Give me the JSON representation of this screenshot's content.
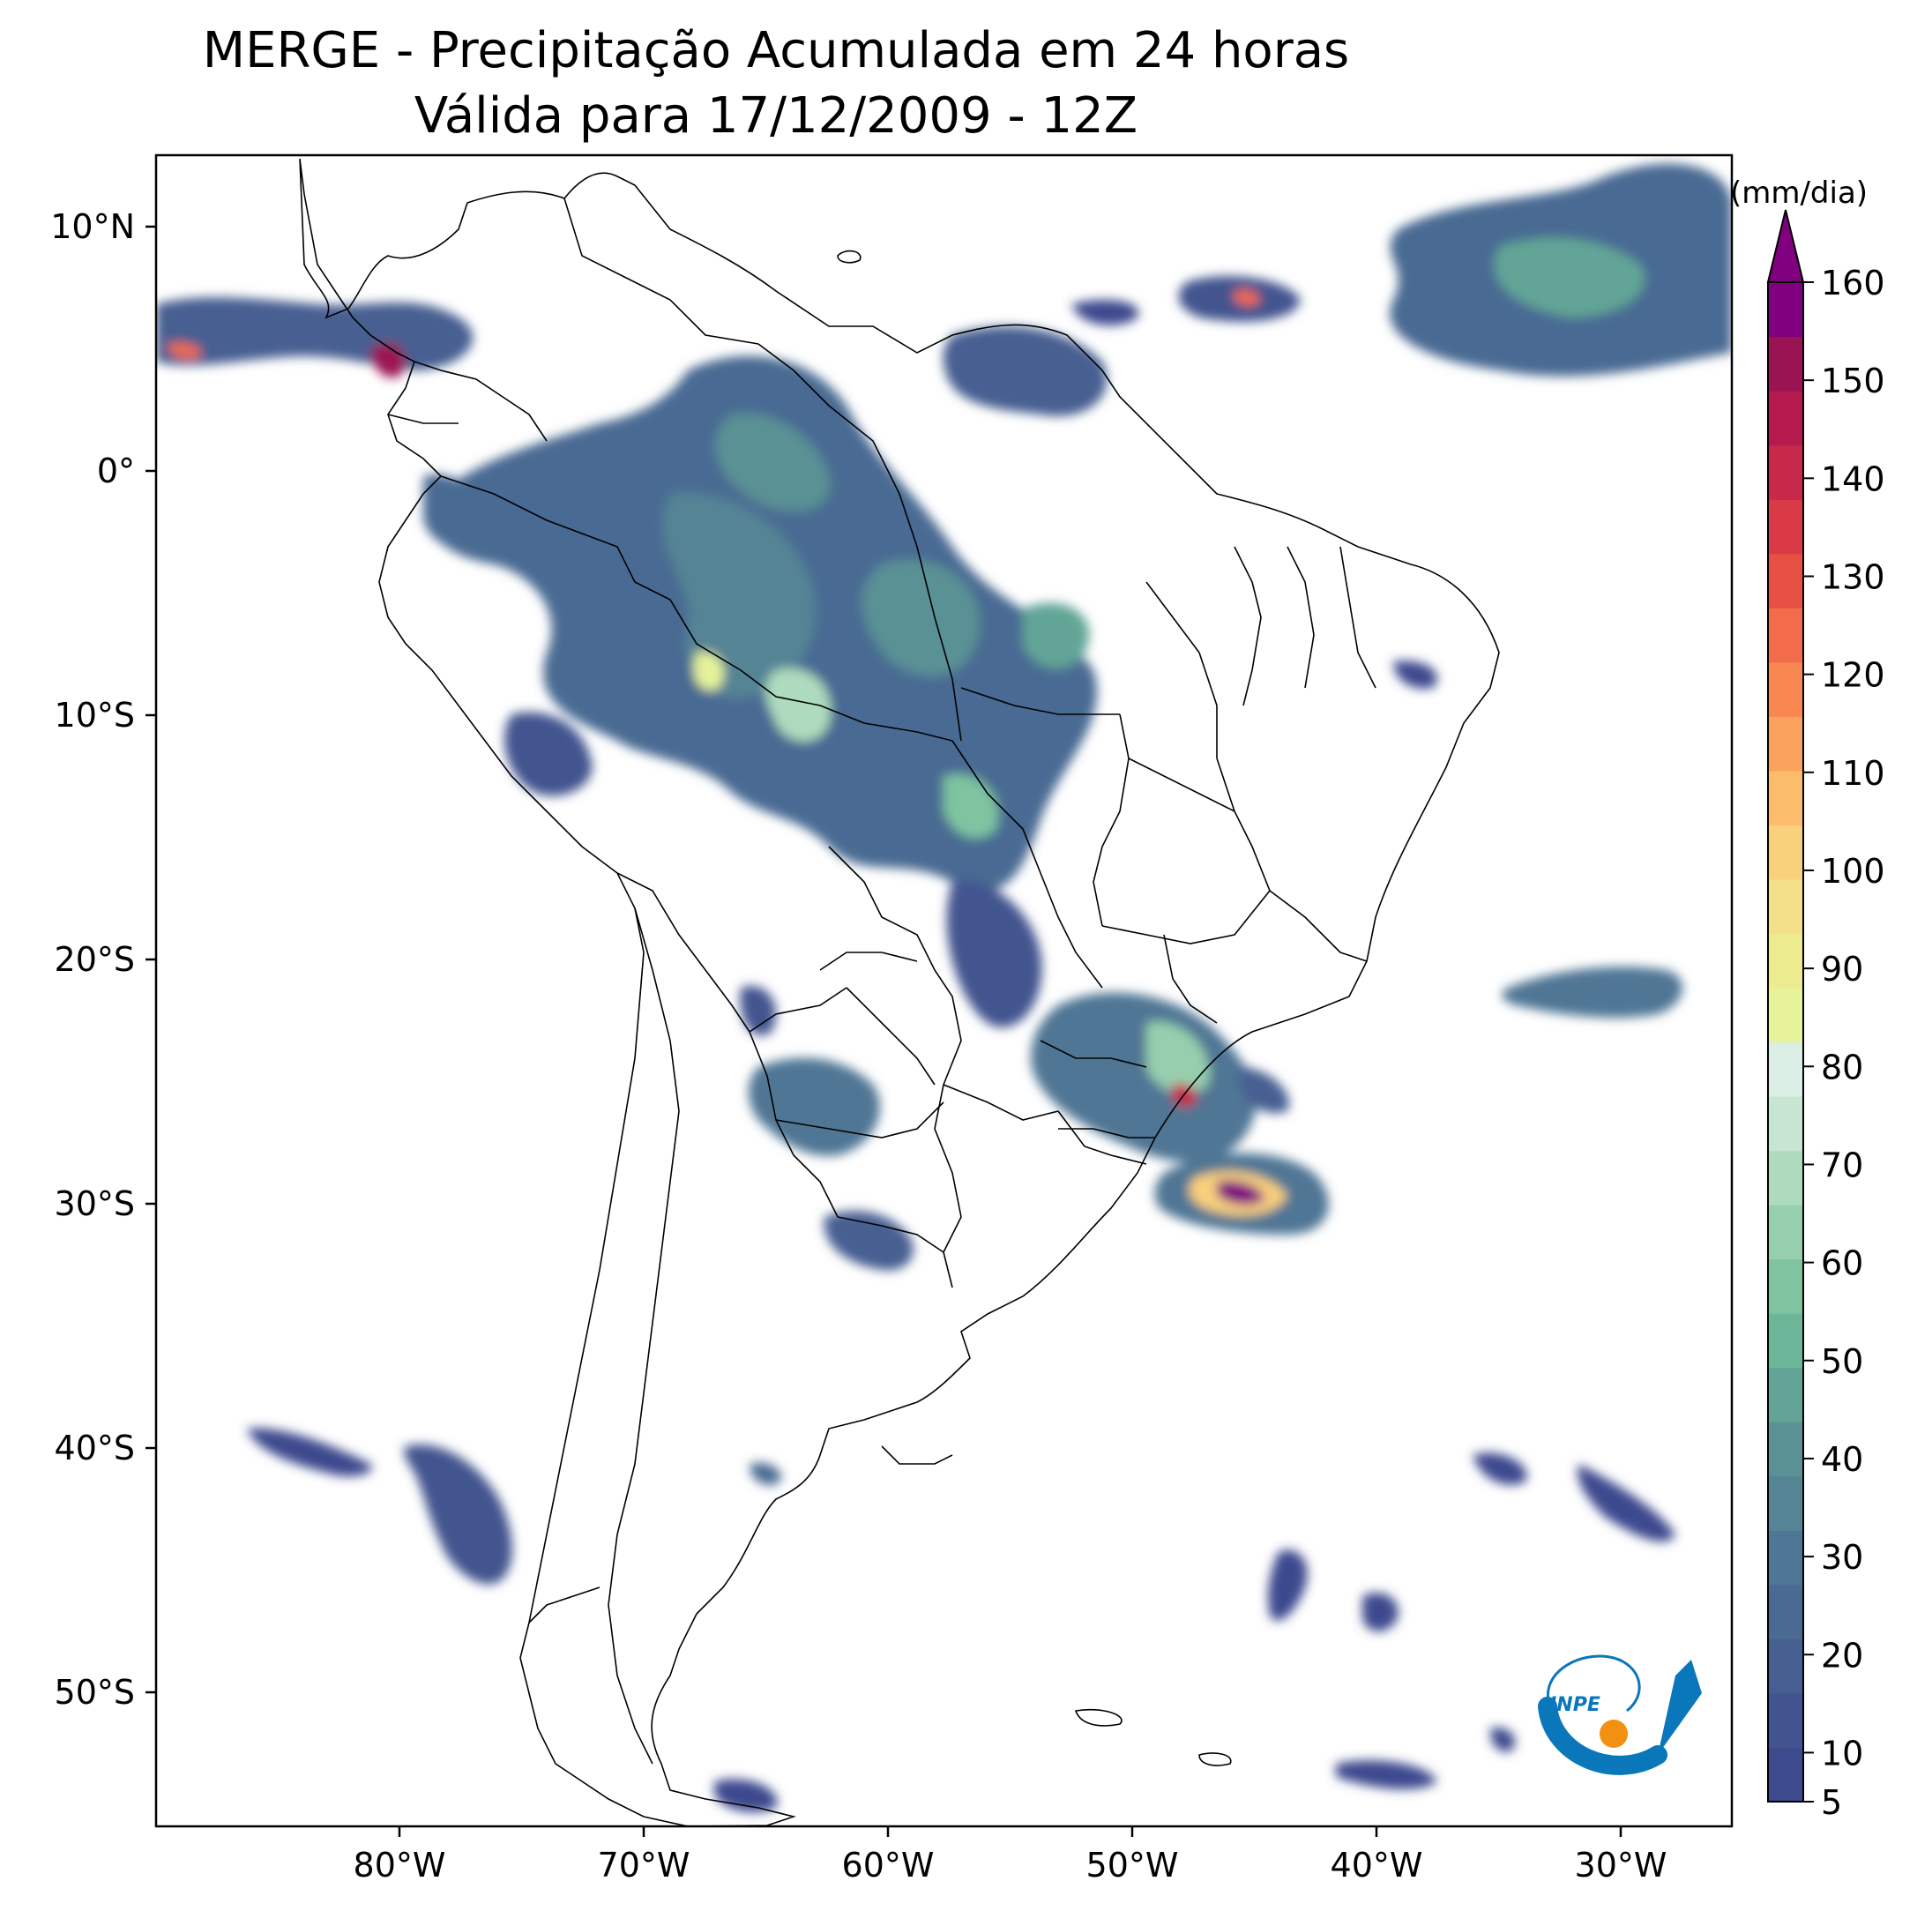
{
  "title": "MERGE - Precipitação Acumulada em 24 horas",
  "subtitle": "Válida para 17/12/2009 - 12Z",
  "lat_labels": [
    "10°N",
    "0°",
    "10°S",
    "20°S",
    "30°S",
    "40°S",
    "50°S"
  ],
  "lon_labels": [
    "80°W",
    "70°W",
    "60°W",
    "50°W",
    "40°W",
    "30°W"
  ],
  "colorbar": {
    "unit": "(mm/dia)",
    "min": 5,
    "max": 160,
    "tick_labels": [
      "5",
      "10",
      "20",
      "30",
      "40",
      "50",
      "60",
      "70",
      "80",
      "90",
      "100",
      "110",
      "120",
      "130",
      "140",
      "150",
      "160"
    ],
    "extend": "max",
    "colors": [
      "#3e4a8e",
      "#42548f",
      "#465f91",
      "#4a6a93",
      "#4f7694",
      "#558495",
      "#5a9194",
      "#62a596",
      "#6cb699",
      "#7ec4a1",
      "#96cfae",
      "#aedbbe",
      "#c6e5d3",
      "#dbeee6",
      "#e6f39a",
      "#edeb8f",
      "#f4e08a",
      "#f9d07b",
      "#fbbc6c",
      "#fba25e",
      "#f88752",
      "#f26b4a",
      "#e85043",
      "#d93a45",
      "#c8284a",
      "#b41a4e",
      "#9a1453",
      "#800080"
    ]
  },
  "logo": {
    "label": "INPE"
  },
  "colors": {
    "frame": "#000000",
    "borders": "#000000",
    "logo_blue": "#0b77bb",
    "logo_orange": "#f29111",
    "extreme": "#8c0a7a"
  }
}
